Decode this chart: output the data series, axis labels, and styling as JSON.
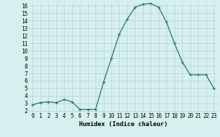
{
  "x": [
    0,
    1,
    2,
    3,
    4,
    5,
    6,
    7,
    8,
    9,
    10,
    11,
    12,
    13,
    14,
    15,
    16,
    17,
    18,
    19,
    20,
    21,
    22,
    23
  ],
  "y": [
    2.8,
    3.1,
    3.2,
    3.1,
    3.5,
    3.2,
    2.2,
    2.2,
    2.2,
    5.8,
    9.0,
    12.2,
    14.2,
    15.8,
    16.2,
    16.3,
    15.8,
    13.8,
    11.0,
    8.5,
    6.8,
    6.8,
    6.8,
    5.0
  ],
  "line_color": "#2d7d6f",
  "marker": "+",
  "marker_size": 3,
  "marker_lw": 0.9,
  "bg_color": "#d5f0ee",
  "grid_color": "#b8d8d4",
  "xlabel": "Humidex (Indice chaleur)",
  "ylim_min": 1.8,
  "ylim_max": 16.4,
  "xlim_min": -0.5,
  "xlim_max": 23.5,
  "yticks": [
    2,
    3,
    4,
    5,
    6,
    7,
    8,
    9,
    10,
    11,
    12,
    13,
    14,
    15,
    16
  ],
  "xticks": [
    0,
    1,
    2,
    3,
    4,
    5,
    6,
    7,
    8,
    9,
    10,
    11,
    12,
    13,
    14,
    15,
    16,
    17,
    18,
    19,
    20,
    21,
    22,
    23
  ],
  "tick_fontsize": 5.5,
  "xlabel_fontsize": 6.5,
  "linewidth": 1.0
}
